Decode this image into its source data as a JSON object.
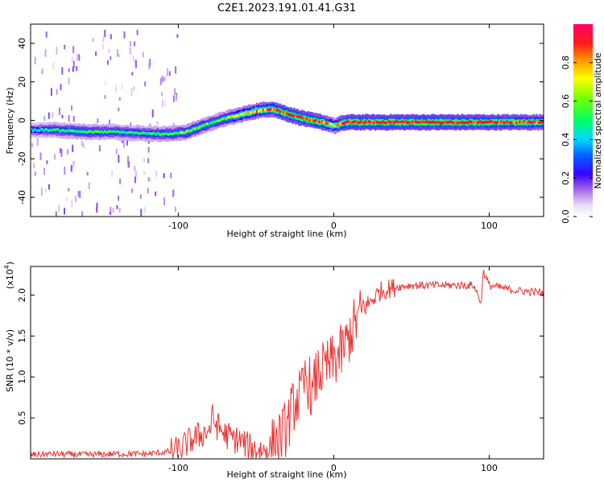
{
  "title": "C2E1.2023.191.01.41.G31",
  "chart_data": [
    {
      "type": "heatmap",
      "xlabel": "Height of straight line (km)",
      "ylabel": "Frequency (Hz)",
      "xlim": [
        -195,
        135
      ],
      "ylim": [
        -50,
        50
      ],
      "xticks": [
        -100,
        0,
        100
      ],
      "xtick_labels": [
        "-100",
        "0",
        "100"
      ],
      "yticks": [
        -40,
        -20,
        0,
        20,
        40
      ],
      "ytick_labels": [
        "-40",
        "-20",
        "0",
        "20",
        "40"
      ],
      "colorbar": {
        "label": "Normalized spectral amplitude",
        "range": [
          0,
          1
        ],
        "ticks": [
          0.0,
          0.2,
          0.4,
          0.6,
          0.8
        ],
        "tick_labels": [
          "0.0",
          "0.2",
          "0.4",
          "0.6",
          "0.8"
        ]
      },
      "ridge": {
        "x": [
          -195,
          -180,
          -160,
          -140,
          -120,
          -105,
          -95,
          -85,
          -78,
          -70,
          -60,
          -50,
          -40,
          -33,
          -25,
          -15,
          -8,
          -3,
          0,
          3,
          8,
          15,
          30,
          50,
          70,
          85,
          95,
          105,
          120,
          135
        ],
        "freq": [
          -5,
          -5,
          -6,
          -6,
          -7,
          -7,
          -6,
          -3,
          -1,
          1,
          3,
          5,
          6,
          4,
          2,
          0,
          -1,
          -2,
          -3,
          -2,
          -1,
          -1,
          -1,
          -1,
          -1,
          -1,
          -1,
          -1,
          -1,
          -1
        ],
        "amplitude": [
          0.4,
          0.5,
          0.55,
          0.5,
          0.5,
          0.55,
          0.6,
          0.6,
          0.55,
          0.6,
          0.7,
          0.8,
          0.85,
          0.9,
          0.92,
          0.92,
          0.9,
          0.8,
          0.7,
          0.85,
          0.95,
          0.97,
          0.97,
          0.97,
          0.97,
          0.95,
          0.93,
          0.92,
          0.9,
          0.85
        ]
      }
    },
    {
      "type": "line",
      "xlabel": "Height of straight line (km)",
      "ylabel": "SNR (10 * v/v)",
      "y_multiplier_label": "(x10",
      "y_multiplier_exp": "4",
      "y_multiplier_close": ")",
      "xlim": [
        -195,
        135
      ],
      "ylim": [
        0,
        2.35
      ],
      "xticks": [
        -100,
        0,
        100
      ],
      "xtick_labels": [
        "-100",
        "0",
        "100"
      ],
      "yticks": [
        0.5,
        1.0,
        1.5,
        2.0
      ],
      "ytick_labels": [
        "0.5",
        "1.0",
        "1.5",
        "2.0"
      ],
      "color": "#ef3333",
      "series": [
        {
          "x": [
            -195,
            -180,
            -160,
            -140,
            -120,
            -100,
            -95,
            -90,
            -85,
            -80,
            -78,
            -75,
            -70,
            -65,
            -60,
            -55,
            -50,
            -45,
            -40,
            -35,
            -30,
            -25,
            -20,
            -18,
            -15,
            -14,
            -12,
            -10,
            -5,
            0,
            5,
            8,
            10,
            15,
            20,
            25,
            30,
            40,
            50,
            60,
            70,
            80,
            90,
            95,
            96,
            100,
            110,
            120,
            135
          ],
          "y": [
            0.05,
            0.06,
            0.05,
            0.06,
            0.06,
            0.1,
            0.18,
            0.25,
            0.3,
            0.35,
            0.5,
            0.4,
            0.3,
            0.25,
            0.22,
            0.15,
            0.12,
            0.1,
            0.15,
            0.25,
            0.4,
            0.7,
            0.8,
            1.0,
            0.9,
            0.7,
            0.95,
            1.05,
            1.1,
            1.2,
            1.3,
            1.4,
            1.5,
            1.7,
            1.85,
            1.95,
            2.05,
            2.1,
            2.12,
            2.12,
            2.12,
            2.12,
            2.12,
            1.9,
            2.3,
            2.12,
            2.08,
            2.05,
            2.03
          ]
        }
      ]
    }
  ]
}
